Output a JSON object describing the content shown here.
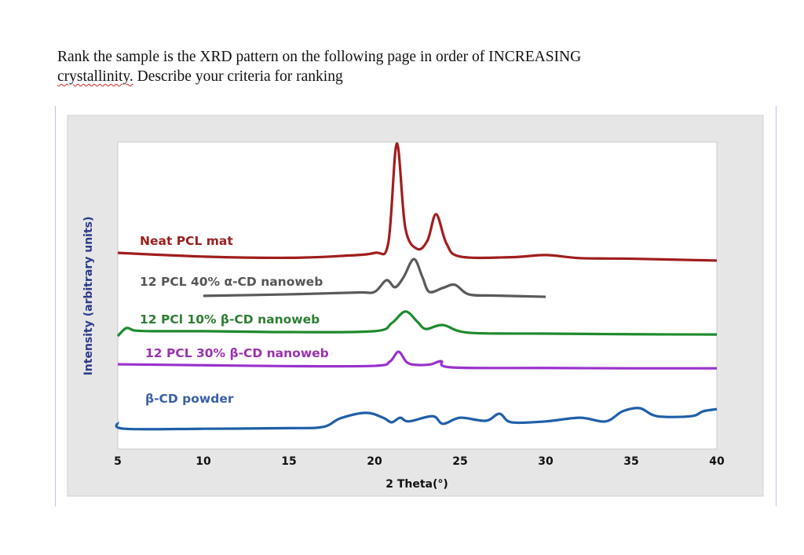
{
  "question": {
    "line1": "Rank the sample is the XRD pattern on the following page in order of INCREASING",
    "line2_flagged": "crystallinity.",
    "line2_rest": " Describe your criteria for ranking"
  },
  "chart_data": {
    "type": "line",
    "title": "",
    "xlabel": "2 Theta(°)",
    "ylabel": "Intensity (arbitrary units)",
    "xlim": [
      5,
      40
    ],
    "ylim": [
      0,
      100
    ],
    "xticks": [
      5,
      10,
      15,
      20,
      25,
      30,
      35,
      40
    ],
    "grid": false,
    "legend": "inline labels above each trace",
    "series": [
      {
        "name": "Neat PCL mat",
        "color": "#a11d1d",
        "label_color": "#9b2020",
        "x": [
          5,
          10,
          15,
          18,
          20,
          20.8,
          21.3,
          21.8,
          22.5,
          23.1,
          23.6,
          24.2,
          25,
          28,
          30,
          32,
          35,
          40
        ],
        "y": [
          63.9,
          62.7,
          62.3,
          62.9,
          63.9,
          67,
          99.5,
          72,
          65.2,
          68,
          76.5,
          67,
          62.7,
          62.5,
          63.2,
          62.2,
          62.0,
          61.4
        ]
      },
      {
        "name": "12 PCL 40% α-CD nanoweb",
        "color": "#5a5a5a",
        "label_color": "#555555",
        "x": [
          10,
          15,
          19,
          20,
          20.7,
          21.2,
          21.7,
          22.3,
          22.8,
          23.2,
          24,
          24.7,
          25.5,
          27,
          30
        ],
        "y": [
          49.9,
          50.4,
          51.0,
          51.2,
          55.0,
          52.7,
          56,
          61.9,
          56,
          51.2,
          52.5,
          53.5,
          50.4,
          50.0,
          49.6
        ]
      },
      {
        "name": "12 PCl 10% β-CD nanoweb",
        "color": "#1e8a2e",
        "label_color": "#2e7d32",
        "x": [
          5,
          5.5,
          6,
          7,
          10,
          15,
          20,
          21,
          21.8,
          22.5,
          23,
          24,
          25.5,
          30,
          35,
          40
        ],
        "y": [
          36.8,
          39.4,
          38.6,
          38.4,
          38.4,
          38.1,
          38.4,
          41,
          44.8,
          41.5,
          39.1,
          40.4,
          37.9,
          37.6,
          37.4,
          37.3
        ]
      },
      {
        "name": "12 PCL 30% β-CD nanoweb",
        "color": "#9932cc",
        "label_color": "#9b30b0",
        "x": [
          5,
          10,
          15,
          20,
          20.9,
          21.4,
          21.9,
          22.5,
          23.3,
          23.9,
          24.5,
          30,
          35,
          40
        ],
        "y": [
          27.6,
          27.3,
          27.0,
          27.1,
          28.5,
          31.7,
          28.2,
          27.4,
          27.6,
          28.6,
          26.6,
          26.4,
          26.3,
          26.3
        ]
      },
      {
        "name": "β-CD powder",
        "color": "#1f5fa8",
        "label_color": "#3a5fa8",
        "x": [
          5,
          5.4,
          10,
          15,
          17,
          18,
          19.5,
          20.5,
          21,
          21.5,
          22,
          23.4,
          24,
          25,
          26.5,
          27.3,
          28,
          30,
          32,
          33.5,
          34.5,
          35.5,
          36.5,
          38.5,
          39.2,
          40
        ],
        "y": [
          8.7,
          6.6,
          6.6,
          6.8,
          7.2,
          10.0,
          11.8,
          10.2,
          8.7,
          10.2,
          9.0,
          10.7,
          8.2,
          10.2,
          9.2,
          11.5,
          8.7,
          9.0,
          10.2,
          9.0,
          12.3,
          13.3,
          10.7,
          10.7,
          12.3,
          13.0
        ]
      }
    ]
  }
}
